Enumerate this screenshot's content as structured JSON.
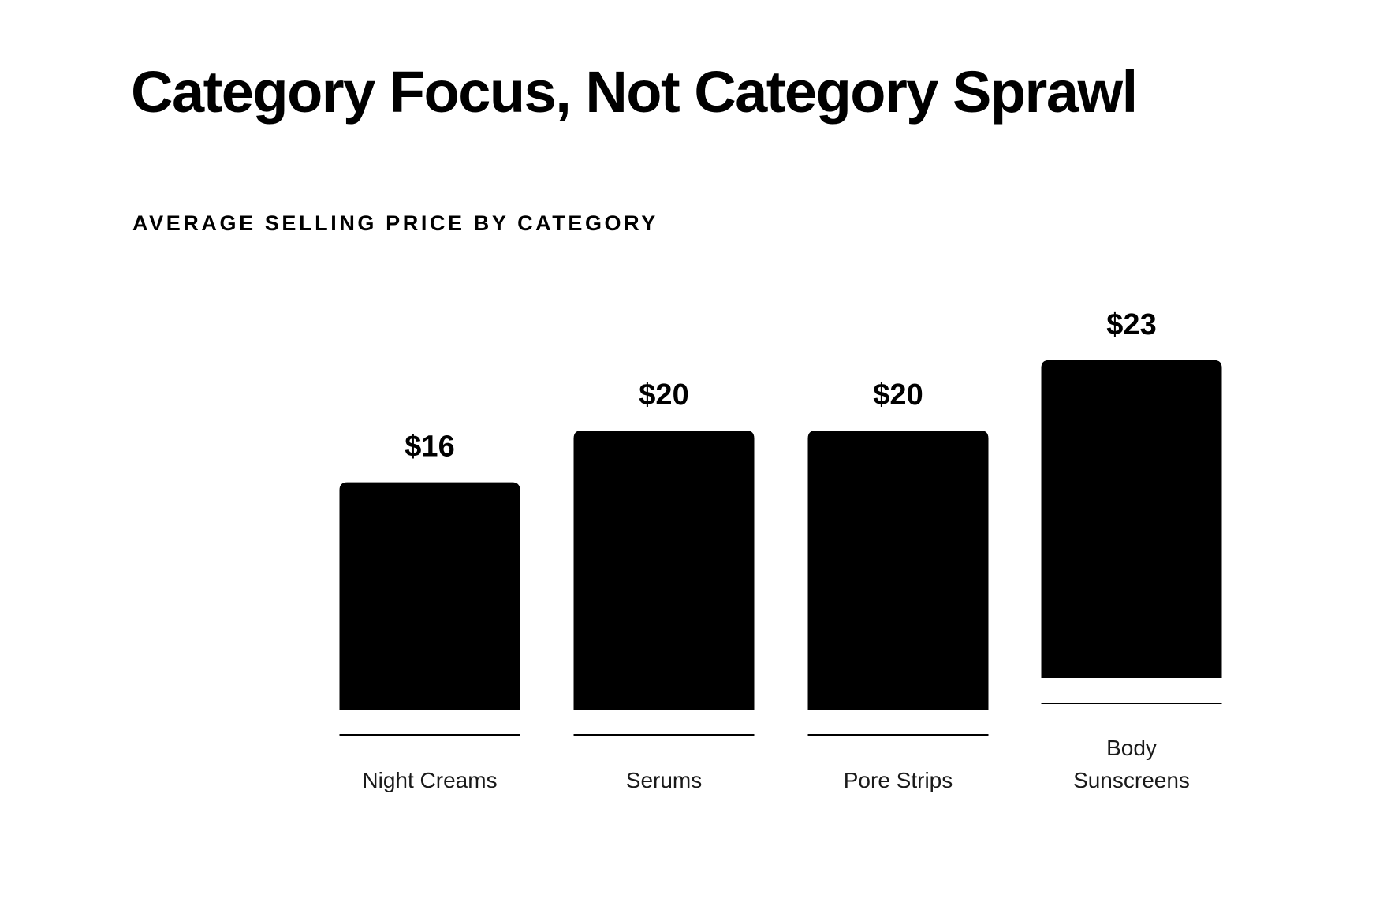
{
  "header": {
    "title": "Category Focus, Not Category Sprawl"
  },
  "chart_data": {
    "type": "bar",
    "title": "AVERAGE SELLING PRICE BY CATEGORY",
    "categories": [
      [
        "Night Creams"
      ],
      [
        "Serums"
      ],
      [
        "Pore Strips"
      ],
      [
        "Body",
        "Sunscreens"
      ]
    ],
    "values": [
      16,
      20,
      20,
      23
    ],
    "value_labels": [
      "$16",
      "$20",
      "$20",
      "$23"
    ],
    "xlabel": "",
    "ylabel": "",
    "grid": false,
    "legend": "none",
    "bar_color": "#000000",
    "background": "#ffffff"
  }
}
